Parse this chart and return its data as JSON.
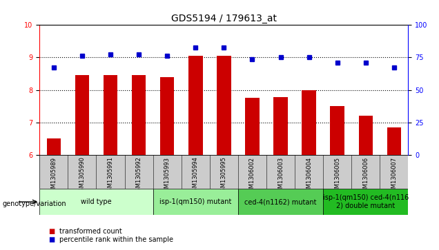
{
  "title": "GDS5194 / 179613_at",
  "samples": [
    "GSM1305989",
    "GSM1305990",
    "GSM1305991",
    "GSM1305992",
    "GSM1305993",
    "GSM1305994",
    "GSM1305995",
    "GSM1306002",
    "GSM1306003",
    "GSM1306004",
    "GSM1306005",
    "GSM1306006",
    "GSM1306007"
  ],
  "bar_values": [
    6.5,
    8.45,
    8.45,
    8.45,
    8.4,
    9.05,
    9.05,
    7.75,
    7.78,
    8.0,
    7.5,
    7.2,
    6.85
  ],
  "dot_values": [
    8.7,
    9.05,
    9.1,
    9.1,
    9.05,
    9.3,
    9.3,
    8.95,
    9.0,
    9.0,
    8.85,
    8.85,
    8.7
  ],
  "bar_color": "#cc0000",
  "dot_color": "#0000cc",
  "ylim_left": [
    6,
    10
  ],
  "ylim_right": [
    0,
    100
  ],
  "yticks_left": [
    6,
    7,
    8,
    9,
    10
  ],
  "yticks_right": [
    0,
    25,
    50,
    75,
    100
  ],
  "groups": [
    {
      "label": "wild type",
      "start": 0,
      "end": 4,
      "color": "#ccffcc"
    },
    {
      "label": "isp-1(qm150) mutant",
      "start": 4,
      "end": 7,
      "color": "#99ee99"
    },
    {
      "label": "ced-4(n1162) mutant",
      "start": 7,
      "end": 10,
      "color": "#55cc55"
    },
    {
      "label": "isp-1(qm150) ced-4(n116\n2) double mutant",
      "start": 10,
      "end": 13,
      "color": "#22bb22"
    }
  ],
  "legend_label_bar": "transformed count",
  "legend_label_dot": "percentile rank within the sample",
  "genotype_label": "genotype/variation",
  "title_fontsize": 10,
  "tick_fontsize": 7,
  "sample_fontsize": 6,
  "group_fontsize": 7
}
